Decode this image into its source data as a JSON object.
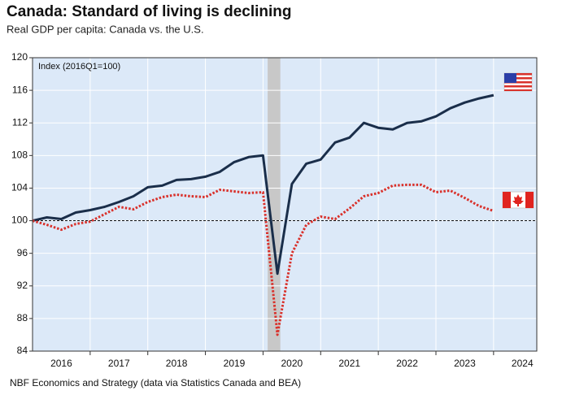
{
  "chart_data": {
    "type": "line",
    "title": "Canada: Standard of living is declining",
    "subtitle": "Real GDP per capita: Canada vs. the U.S.",
    "annotation": "Index (2016Q1=100)",
    "source": "NBF Economics and Strategy (data via Statistics Canada and BEA)",
    "x": [
      2016,
      2016.25,
      2016.5,
      2016.75,
      2017,
      2017.25,
      2017.5,
      2017.75,
      2018,
      2018.25,
      2018.5,
      2018.75,
      2019,
      2019.25,
      2019.5,
      2019.75,
      2020,
      2020.25,
      2020.5,
      2020.75,
      2021,
      2021.25,
      2021.5,
      2021.75,
      2022,
      2022.25,
      2022.5,
      2022.75,
      2023,
      2023.25,
      2023.5,
      2023.75,
      2024
    ],
    "series": [
      {
        "name": "U.S.",
        "color": "#1a2e4a",
        "style": "solid",
        "values": [
          100,
          100.4,
          100.2,
          101.0,
          101.3,
          101.7,
          102.3,
          103.0,
          104.1,
          104.3,
          105.0,
          105.1,
          105.4,
          106.0,
          107.2,
          107.8,
          108.0,
          93.5,
          104.5,
          107.0,
          107.5,
          109.6,
          110.2,
          112.0,
          111.4,
          111.2,
          112.0,
          112.2,
          112.8,
          113.8,
          114.5,
          115.0,
          115.4
        ]
      },
      {
        "name": "Canada",
        "color": "#d9312b",
        "style": "dotted",
        "values": [
          100,
          99.5,
          98.9,
          99.6,
          99.9,
          100.8,
          101.7,
          101.4,
          102.3,
          102.9,
          103.2,
          103.0,
          102.9,
          103.8,
          103.6,
          103.4,
          103.5,
          86.0,
          96.0,
          99.5,
          100.5,
          100.2,
          101.5,
          103.0,
          103.4,
          104.3,
          104.4,
          104.4,
          103.5,
          103.7,
          102.8,
          101.8,
          101.2
        ]
      }
    ],
    "reference_line": 100,
    "recession": [
      2020.08,
      2020.3
    ],
    "xlim": [
      2016,
      2024.75
    ],
    "xticks": [
      {
        "value": 2016.5,
        "label": "2016"
      },
      {
        "value": 2017.5,
        "label": "2017"
      },
      {
        "value": 2018.5,
        "label": "2018"
      },
      {
        "value": 2019.5,
        "label": "2019"
      },
      {
        "value": 2020.5,
        "label": "2020"
      },
      {
        "value": 2021.5,
        "label": "2021"
      },
      {
        "value": 2022.5,
        "label": "2022"
      },
      {
        "value": 2023.5,
        "label": "2023"
      },
      {
        "value": 2024.5,
        "label": "2024"
      }
    ],
    "ylim": [
      84,
      120
    ],
    "yticks": [
      84,
      88,
      92,
      96,
      100,
      104,
      108,
      112,
      116,
      120
    ],
    "grid": true
  }
}
